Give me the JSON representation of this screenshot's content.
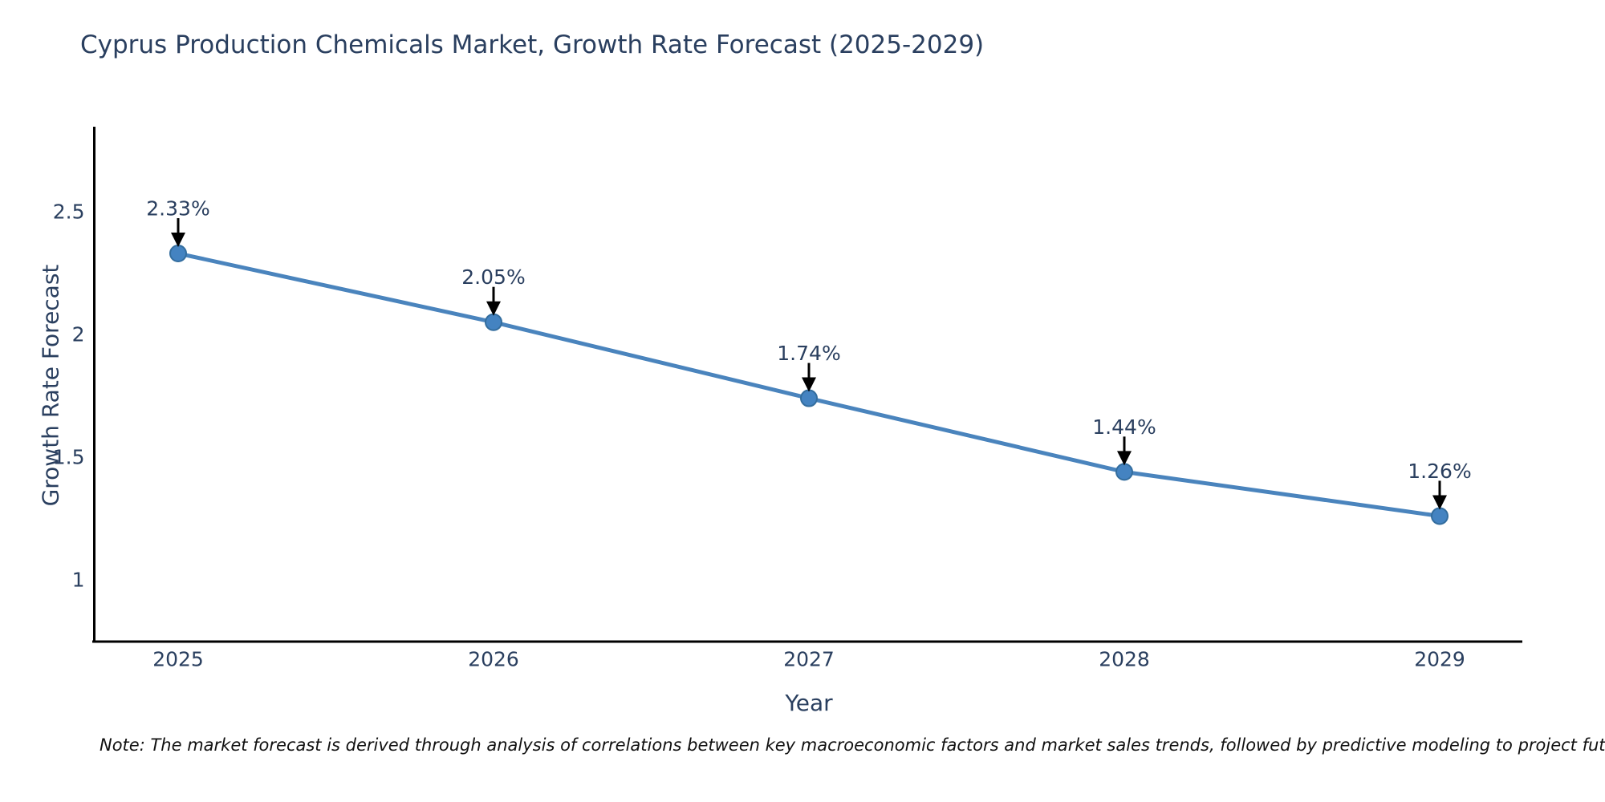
{
  "title": "Cyprus Production Chemicals Market, Growth Rate Forecast (2025-2029)",
  "note": "Note: The market forecast is derived through analysis of correlations between key macroeconomic factors and market sales trends, followed by predictive modeling to project future sales",
  "colors": {
    "text": "#2a3f5f",
    "line": "#4a84bd",
    "marker_fill": "#4483c1",
    "marker_edge": "#336d9e",
    "axis": "#000000",
    "arrow": "#000000",
    "note_text": "#111111",
    "background": "#ffffff"
  },
  "chart_data": {
    "type": "line",
    "title": "Cyprus Production Chemicals Market, Growth Rate Forecast (2025-2029)",
    "xlabel": "Year",
    "ylabel": "Growth Rate Forecast",
    "x": [
      "2025",
      "2026",
      "2027",
      "2028",
      "2029"
    ],
    "series": [
      {
        "name": "Growth Rate Forecast",
        "values": [
          2.33,
          2.05,
          1.74,
          1.44,
          1.26
        ]
      }
    ],
    "point_labels": [
      "2.33%",
      "2.05%",
      "1.74%",
      "1.44%",
      "1.26%"
    ],
    "yticks": [
      1,
      1.5,
      2,
      2.5
    ],
    "ylim": [
      0.75,
      2.85
    ],
    "grid": false,
    "legend": "none",
    "annotations": "percentage value label with downward arrow above each data point"
  }
}
